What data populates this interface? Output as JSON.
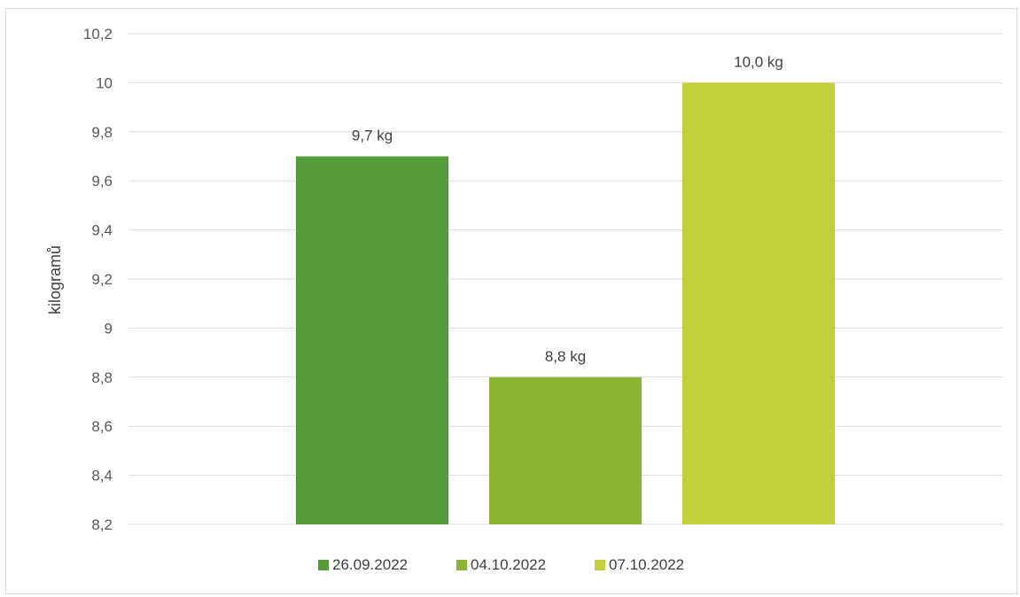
{
  "chart_data": {
    "type": "bar",
    "title": "",
    "xlabel": "",
    "ylabel": "kilogramů",
    "ylim": [
      8.2,
      10.2
    ],
    "yticks": [
      "8,2",
      "8,4",
      "8,6",
      "8,8",
      "9",
      "9,2",
      "9,4",
      "9,6",
      "9,8",
      "10",
      "10,2"
    ],
    "grid": true,
    "legend_position": "bottom",
    "series": [
      {
        "name": "26.09.2022",
        "values": [
          9.7
        ],
        "color": "#539c39",
        "label": "9,7 kg"
      },
      {
        "name": "04.10.2022",
        "values": [
          8.8
        ],
        "color": "#8ab634",
        "label": "8,8 kg"
      },
      {
        "name": "07.10.2022",
        "values": [
          10.0
        ],
        "color": "#c2d13a",
        "label": "10,0 kg"
      }
    ]
  }
}
